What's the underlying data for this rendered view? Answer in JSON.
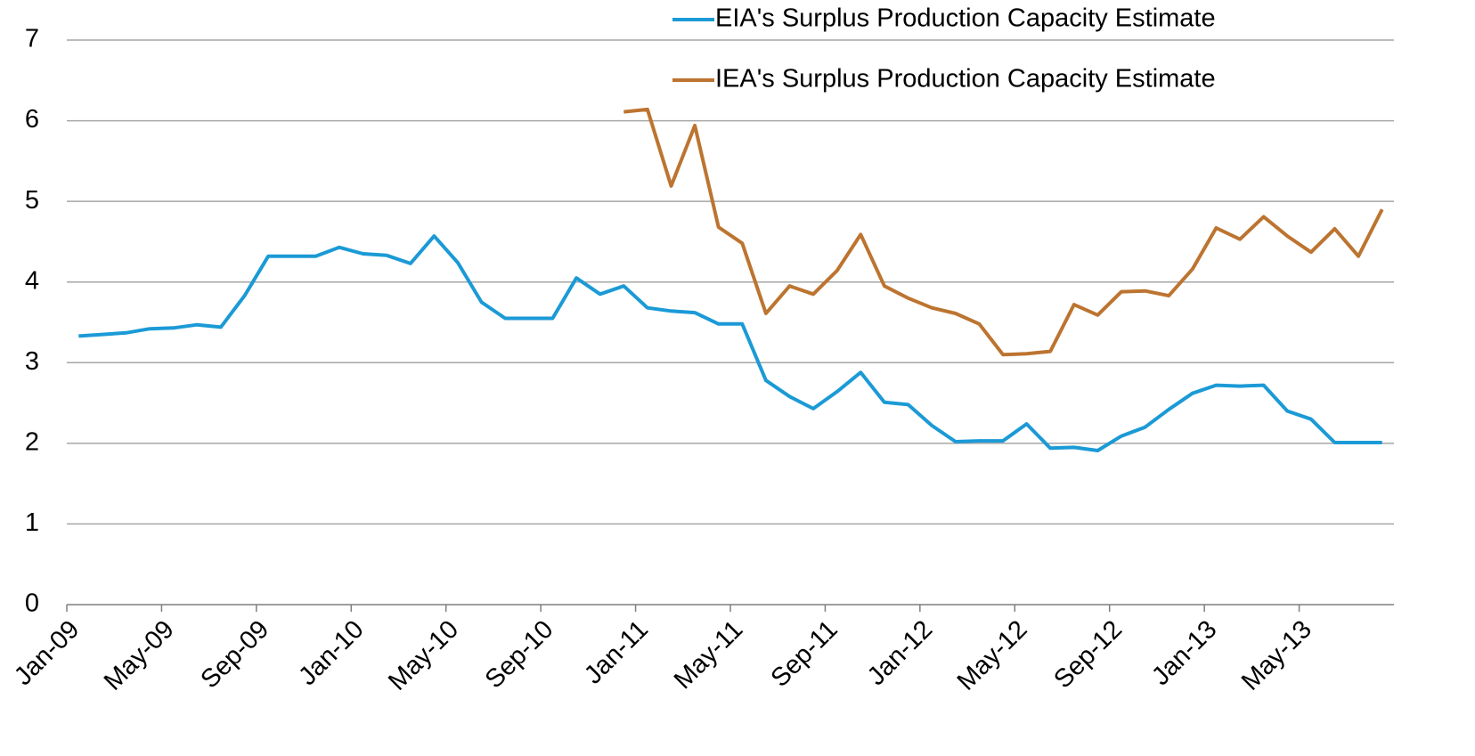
{
  "chart_data": {
    "type": "line",
    "categories": [
      "Jan-09",
      null,
      null,
      null,
      "May-09",
      null,
      null,
      null,
      "Sep-09",
      null,
      null,
      null,
      "Jan-10",
      null,
      null,
      null,
      "May-10",
      null,
      null,
      null,
      "Sep-10",
      null,
      null,
      null,
      "Jan-11",
      null,
      null,
      null,
      "May-11",
      null,
      null,
      null,
      "Sep-11",
      null,
      null,
      null,
      "Jan-12",
      null,
      null,
      null,
      "May-12",
      null,
      null,
      null,
      "Sep-12",
      null,
      null,
      null,
      "Jan-13",
      null,
      null,
      null,
      "May-13",
      null,
      null,
      null
    ],
    "series": [
      {
        "name": "EIA's Surplus Production Capacity Estimate",
        "color": "#1b9ad6",
        "values": [
          3.33,
          3.35,
          3.37,
          3.42,
          3.43,
          3.47,
          3.44,
          3.83,
          4.32,
          4.32,
          4.32,
          4.43,
          4.35,
          4.33,
          4.23,
          4.57,
          4.24,
          3.75,
          3.55,
          3.55,
          3.55,
          4.05,
          3.85,
          3.95,
          3.68,
          3.64,
          3.62,
          3.48,
          3.48,
          2.78,
          2.58,
          2.43,
          2.64,
          2.88,
          2.51,
          2.48,
          2.22,
          2.02,
          2.03,
          2.03,
          2.24,
          1.94,
          1.95,
          1.91,
          2.09,
          2.2,
          2.42,
          2.62,
          2.72,
          2.71,
          2.72,
          2.4,
          2.3,
          2.01,
          2.01,
          2.01
        ]
      },
      {
        "name": "IEA's Surplus Production Capacity Estimate",
        "color": "#bc7430",
        "values": [
          null,
          null,
          null,
          null,
          null,
          null,
          null,
          null,
          null,
          null,
          null,
          null,
          null,
          null,
          null,
          null,
          null,
          null,
          null,
          null,
          null,
          null,
          null,
          6.11,
          6.14,
          5.19,
          5.94,
          4.68,
          4.48,
          3.61,
          3.95,
          3.85,
          4.14,
          4.59,
          3.95,
          3.8,
          3.68,
          3.61,
          3.48,
          3.1,
          3.11,
          3.14,
          3.72,
          3.59,
          3.88,
          3.89,
          3.83,
          4.16,
          4.67,
          4.53,
          4.81,
          4.57,
          4.37,
          4.66,
          4.32,
          4.9
        ]
      }
    ],
    "ylim": [
      0,
      7
    ],
    "yticks": [
      0,
      1,
      2,
      3,
      4,
      5,
      6,
      7
    ],
    "grid": true,
    "legend": "top-right"
  }
}
